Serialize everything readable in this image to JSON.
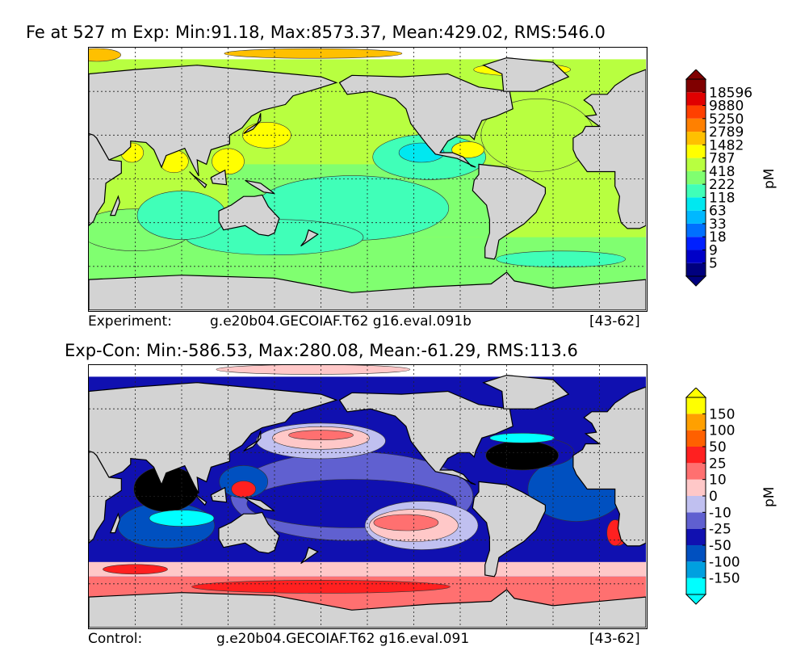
{
  "panels": [
    {
      "title": "Fe at 527 m Exp: Min:91.18, Max:8573.37, Mean:429.02, RMS:546.0",
      "footer_label": "Experiment:",
      "footer_case": "g.e20b04.GECOIAF.T62 g16.eval.091b",
      "footer_years": "[43-62]"
    },
    {
      "title": "Exp-Con: Min:-586.53, Max:280.08, Mean:-61.29, RMS:113.6",
      "footer_label": "Control:",
      "footer_case": "g.e20b04.GECOIAF.T62 g16.eval.091",
      "footer_years": "[43-62]"
    }
  ],
  "chart_data": [
    {
      "type": "heatmap",
      "title": "Fe at 527 m Exp: Min:91.18, Max:8573.37, Mean:429.02, RMS:546.0",
      "colorbar": {
        "label": "pM",
        "levels": [
          "5",
          "9",
          "18",
          "33",
          "63",
          "118",
          "222",
          "418",
          "787",
          "1482",
          "2789",
          "5250",
          "9880",
          "18596"
        ],
        "colors": [
          "#00007f",
          "#0000c8",
          "#0020ff",
          "#0070ff",
          "#00b8ff",
          "#00e8f0",
          "#40ffb8",
          "#80ff70",
          "#b8ff40",
          "#ffff00",
          "#ffc000",
          "#ff8000",
          "#ff4000",
          "#e00000",
          "#800000"
        ],
        "extend": "both"
      },
      "colors": {
        "land": "#d3d3d3",
        "missing": "#ffffff"
      }
    },
    {
      "type": "heatmap",
      "title": "Exp-Con: Min:-586.53, Max:280.08, Mean:-61.29, RMS:113.6",
      "colorbar": {
        "label": "pM",
        "levels": [
          "-150",
          "-100",
          "-50",
          "-25",
          "-10",
          "0",
          "10",
          "25",
          "50",
          "100",
          "150"
        ],
        "colors": [
          "#00ffff",
          "#00a0e0",
          "#0050c0",
          "#1010b0",
          "#6060d0",
          "#c0c0f0",
          "#ffc8c8",
          "#ff7070",
          "#ff2020",
          "#ff6000",
          "#ffa000",
          "#ffff00"
        ],
        "extend": "both"
      },
      "colors": {
        "land": "#d3d3d3",
        "missing": "#ffffff",
        "below_min": "#000000"
      }
    }
  ]
}
